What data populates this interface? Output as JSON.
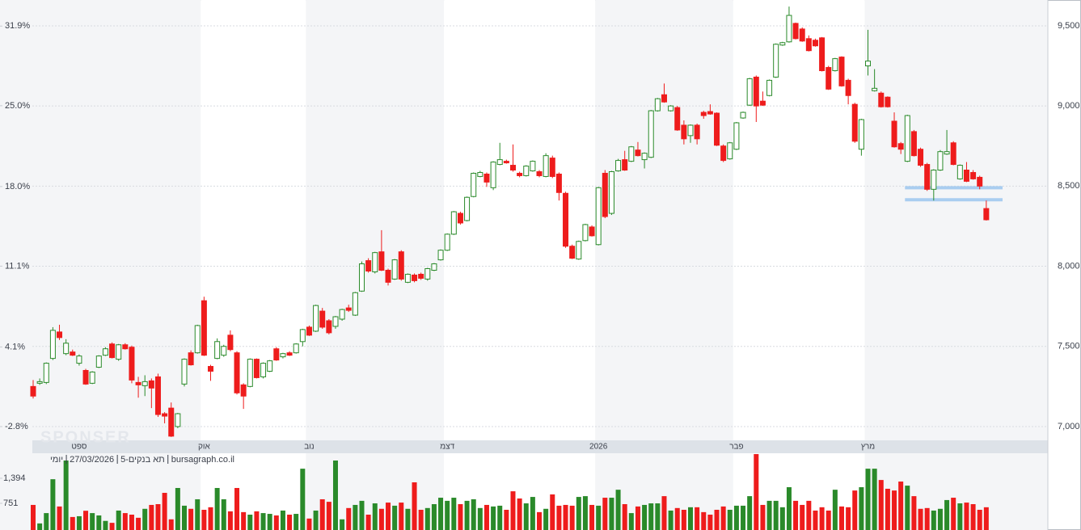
{
  "chart_data": {
    "type": "candlestick",
    "categories": [
      null,
      null,
      null,
      null,
      null,
      null,
      null,
      "ספט",
      null,
      null,
      null,
      null,
      null,
      null,
      null,
      null,
      null,
      null,
      null,
      null,
      null,
      null,
      null,
      null,
      null,
      null,
      "אוק",
      null,
      null,
      null,
      null,
      null,
      null,
      null,
      null,
      null,
      null,
      null,
      null,
      null,
      null,
      null,
      "נוב",
      null,
      null,
      null,
      null,
      null,
      null,
      null,
      null,
      null,
      null,
      null,
      null,
      null,
      null,
      null,
      null,
      null,
      null,
      null,
      null,
      "דצמ",
      null,
      null,
      null,
      null,
      null,
      null,
      null,
      null,
      null,
      null,
      null,
      null,
      null,
      null,
      null,
      null,
      null,
      null,
      null,
      null,
      null,
      null,
      "2026",
      null,
      null,
      null,
      null,
      null,
      null,
      null,
      null,
      null,
      null,
      null,
      null,
      null,
      null,
      null,
      null,
      null,
      null,
      null,
      null,
      "פבר",
      null,
      null,
      null,
      null,
      null,
      null,
      null,
      null,
      null,
      null,
      null,
      null,
      null,
      null,
      null,
      null,
      null,
      null,
      null,
      "מרץ",
      null,
      null,
      null,
      null,
      null,
      null,
      null,
      null,
      null,
      null,
      null,
      null,
      null,
      null,
      null,
      null,
      null,
      null
    ],
    "open": [
      7250,
      7270,
      7275,
      7425,
      7590,
      7455,
      7465,
      7395,
      7350,
      7270,
      7370,
      7445,
      7515,
      7420,
      7510,
      7495,
      7275,
      7255,
      7285,
      7310,
      7080,
      7115,
      7000,
      7265,
      7460,
      7460,
      7785,
      7375,
      7425,
      7445,
      7570,
      7460,
      7260,
      7250,
      7420,
      7310,
      7345,
      7485,
      7435,
      7460,
      7460,
      7530,
      7620,
      7595,
      7720,
      7660,
      7625,
      7670,
      7740,
      7695,
      7845,
      8035,
      7965,
      8090,
      7975,
      7920,
      8090,
      7900,
      7945,
      7950,
      7920,
      7975,
      8040,
      8100,
      8200,
      8330,
      8285,
      8435,
      8560,
      8575,
      8490,
      8635,
      8655,
      8630,
      8580,
      8565,
      8595,
      8590,
      8560,
      8675,
      8575,
      8455,
      8125,
      8045,
      8160,
      8245,
      8135,
      8580,
      8330,
      8595,
      8665,
      8655,
      8725,
      8665,
      8680,
      8970,
      9070,
      8970,
      8990,
      8880,
      8815,
      8880,
      8960,
      8965,
      8955,
      8750,
      8670,
      8730,
      8925,
      9005,
      9180,
      9030,
      9065,
      9180,
      9380,
      9400,
      9515,
      9480,
      9420,
      9410,
      9425,
      9240,
      9220,
      9305,
      9160,
      9010,
      8730,
      9250,
      9095,
      9080,
      9055,
      8905,
      8765,
      8655,
      8840,
      8730,
      8635,
      8480,
      8600,
      8700,
      8770,
      8545,
      8600,
      8585,
      8555,
      8360
    ],
    "high": [
      7290,
      7300,
      7400,
      7620,
      7635,
      7545,
      7480,
      7450,
      7360,
      7345,
      7445,
      7495,
      7525,
      7515,
      7520,
      7505,
      7310,
      7320,
      7300,
      7330,
      7090,
      7150,
      7085,
      7425,
      7475,
      7635,
      7810,
      7385,
      7550,
      7510,
      7600,
      7470,
      7270,
      7425,
      7425,
      7400,
      7415,
      7495,
      7460,
      7470,
      7520,
      7610,
      7630,
      7760,
      7740,
      7670,
      7690,
      7735,
      7760,
      7840,
      8030,
      8050,
      8090,
      8225,
      7985,
      8045,
      8100,
      7955,
      7955,
      7960,
      7990,
      8020,
      8105,
      8205,
      8345,
      8340,
      8435,
      8585,
      8595,
      8585,
      8655,
      8770,
      8665,
      8760,
      8590,
      8630,
      8660,
      8600,
      8705,
      8690,
      8585,
      8465,
      8135,
      8160,
      8265,
      8255,
      8495,
      8600,
      8595,
      8670,
      8720,
      8750,
      8775,
      8710,
      8975,
      9050,
      9140,
      9005,
      9000,
      8910,
      8885,
      8890,
      8970,
      9010,
      8960,
      8760,
      8775,
      8900,
      8965,
      9175,
      9190,
      9090,
      9165,
      9390,
      9400,
      9620,
      9520,
      9490,
      9440,
      9420,
      9430,
      9250,
      9300,
      9310,
      9170,
      9020,
      8920,
      9475,
      9230,
      9090,
      9060,
      8960,
      8775,
      8945,
      8850,
      8740,
      8645,
      8605,
      8725,
      8850,
      8780,
      8635,
      8650,
      8600,
      8565,
      8410
    ],
    "low": [
      7175,
      7260,
      7265,
      7415,
      7540,
      7445,
      7440,
      7380,
      7260,
      7265,
      7365,
      7440,
      7425,
      7410,
      7480,
      7270,
      7180,
      7190,
      7115,
      7060,
      7020,
      6935,
      6990,
      7250,
      7380,
      7455,
      7440,
      7285,
      7420,
      7435,
      7470,
      7200,
      7110,
      7245,
      7300,
      7300,
      7340,
      7410,
      7425,
      7440,
      7455,
      7500,
      7565,
      7590,
      7610,
      7575,
      7610,
      7660,
      7715,
      7690,
      7840,
      7960,
      7955,
      7970,
      7880,
      7915,
      7910,
      7895,
      7900,
      7915,
      7910,
      7970,
      8035,
      8095,
      8195,
      8260,
      8280,
      8430,
      8555,
      8495,
      8475,
      8630,
      8640,
      8590,
      8555,
      8560,
      8590,
      8555,
      8555,
      8550,
      8410,
      8115,
      8045,
      8040,
      8155,
      8185,
      8130,
      8300,
      8320,
      8590,
      8595,
      8650,
      8685,
      8610,
      8675,
      8965,
      9020,
      8965,
      8845,
      8760,
      8770,
      8760,
      8920,
      8945,
      8750,
      8650,
      8665,
      8725,
      8920,
      9000,
      8900,
      9000,
      9060,
      9175,
      9375,
      9395,
      9415,
      9400,
      9340,
      9370,
      9215,
      9100,
      9215,
      9120,
      9010,
      8770,
      8690,
      9190,
      9090,
      8990,
      8990,
      8740,
      8700,
      8650,
      8685,
      8620,
      8470,
      8410,
      8595,
      8695,
      8630,
      8540,
      8525,
      8540,
      8480,
      8285
    ],
    "close": [
      7190,
      7280,
      7395,
      7600,
      7555,
      7520,
      7445,
      7440,
      7265,
      7340,
      7440,
      7485,
      7430,
      7510,
      7485,
      7290,
      7260,
      7280,
      7240,
      7075,
      7065,
      6940,
      7080,
      7420,
      7385,
      7630,
      7445,
      7345,
      7530,
      7500,
      7480,
      7210,
      7190,
      7420,
      7305,
      7395,
      7410,
      7415,
      7455,
      7445,
      7515,
      7605,
      7570,
      7755,
      7620,
      7585,
      7685,
      7730,
      7725,
      7835,
      8015,
      7970,
      8085,
      7975,
      7900,
      8040,
      7920,
      7950,
      7910,
      7925,
      7985,
      8015,
      8100,
      8200,
      8340,
      8270,
      8430,
      8580,
      8585,
      8525,
      8650,
      8665,
      8645,
      8600,
      8565,
      8625,
      8655,
      8565,
      8690,
      8560,
      8460,
      8125,
      8050,
      8155,
      8260,
      8190,
      8490,
      8310,
      8590,
      8660,
      8600,
      8745,
      8690,
      8705,
      8970,
      9045,
      9025,
      9000,
      8850,
      8795,
      8880,
      8795,
      8940,
      8950,
      8755,
      8660,
      8770,
      8895,
      8960,
      9170,
      9000,
      9005,
      9160,
      9385,
      9395,
      9565,
      9420,
      9405,
      9345,
      9375,
      9220,
      9105,
      9295,
      9125,
      9065,
      8780,
      8915,
      9280,
      9110,
      8995,
      8995,
      8745,
      8730,
      8940,
      8690,
      8630,
      8480,
      8600,
      8715,
      8715,
      8635,
      8630,
      8530,
      8545,
      8500,
      8290
    ],
    "up_color": "#2a8a2a",
    "down_color": "#ee1c1c",
    "ylim": [
      6914,
      9661
    ],
    "yticks": [
      {
        "value": 7000,
        "label": "7,000"
      },
      {
        "value": 7500,
        "label": "7,500"
      },
      {
        "value": 8000,
        "label": "8,000"
      },
      {
        "value": 8500,
        "label": "8,500"
      },
      {
        "value": 9000,
        "label": "9,000"
      },
      {
        "value": 9500,
        "label": "9,500"
      }
    ],
    "y2lim": [
      -3.99,
      34.16
    ],
    "y2ticks": [
      {
        "value": -2.8,
        "label": "-2.8%"
      },
      {
        "value": 4.1,
        "label": "4.1%"
      },
      {
        "value": 11.1,
        "label": "11.1%"
      },
      {
        "value": 18.0,
        "label": "18.0%"
      },
      {
        "value": 25.0,
        "label": "25.0%"
      },
      {
        "value": 31.9,
        "label": "31.9%"
      }
    ],
    "grid": true,
    "levels": [
      8490,
      8415
    ],
    "level_color": "#a9cdf0",
    "caption": [
      "יומי",
      "27/03/2026",
      "תא בנקים-5",
      "bursagraph.co.il"
    ],
    "watermark": "SPONSER",
    "volume": {
      "values": [
        710,
        235,
        500,
        1370,
        670,
        1850,
        400,
        420,
        560,
        500,
        440,
        300,
        250,
        565,
        500,
        460,
        380,
        610,
        710,
        730,
        1020,
        340,
        1145,
        690,
        610,
        855,
        585,
        650,
        1145,
        855,
        545,
        1145,
        525,
        460,
        545,
        500,
        480,
        440,
        565,
        460,
        480,
        1640,
        360,
        565,
        855,
        790,
        1850,
        340,
        630,
        710,
        815,
        460,
        750,
        610,
        770,
        690,
        770,
        610,
        1290,
        585,
        630,
        730,
        895,
        815,
        895,
        730,
        815,
        855,
        630,
        710,
        670,
        690,
        585,
        1060,
        875,
        750,
        915,
        525,
        610,
        980,
        690,
        710,
        690,
        915,
        935,
        710,
        690,
        895,
        895,
        1100,
        730,
        500,
        670,
        710,
        750,
        750,
        935,
        565,
        630,
        585,
        650,
        650,
        525,
        460,
        585,
        670,
        585,
        690,
        690,
        935,
        2015,
        710,
        815,
        815,
        650,
        1165,
        815,
        710,
        815,
        565,
        650,
        565,
        1100,
        670,
        650,
        1080,
        1165,
        1640,
        1640,
        1350,
        1125,
        1080,
        1310,
        1205,
        935,
        610,
        630,
        565,
        610,
        835,
        895,
        750,
        770,
        730,
        585,
        650
      ],
      "ylim": [
        66,
        2016
      ],
      "yticks": [
        {
          "value": 751,
          "label": "751"
        },
        {
          "value": 1394,
          "label": "1,394"
        }
      ]
    }
  }
}
